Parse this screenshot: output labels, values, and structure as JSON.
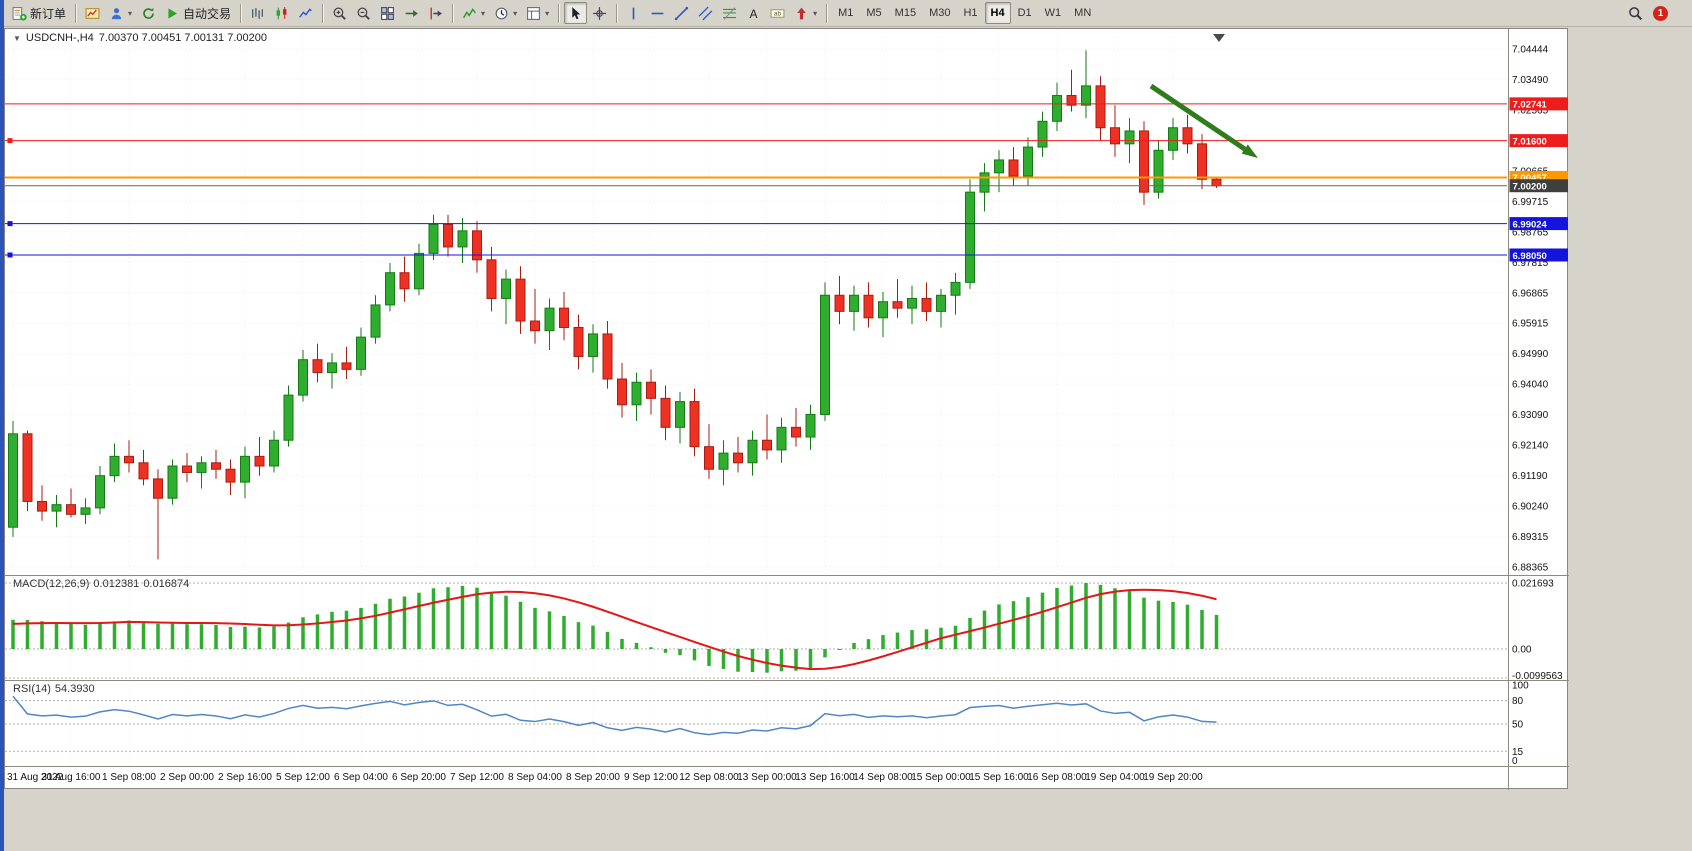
{
  "toolbar": {
    "buttons": [
      {
        "name": "new-order",
        "label": "新订单"
      },
      {
        "sep": true
      },
      {
        "name": "new-chart"
      },
      {
        "name": "profiles",
        "dropdown": true
      },
      {
        "name": "refresh"
      },
      {
        "name": "auto-trading",
        "label": "自动交易"
      },
      {
        "sep": true
      },
      {
        "name": "chart-bars"
      },
      {
        "name": "chart-candles"
      },
      {
        "name": "chart-line"
      },
      {
        "sep": true
      },
      {
        "name": "zoom-in"
      },
      {
        "name": "zoom-out"
      },
      {
        "name": "tile-windows"
      },
      {
        "name": "auto-scroll"
      },
      {
        "name": "chart-shift"
      },
      {
        "sep": true
      },
      {
        "name": "indicators",
        "dropdown": true
      },
      {
        "name": "periods",
        "dropdown": true
      },
      {
        "name": "templates",
        "dropdown": true
      },
      {
        "sep": true
      },
      {
        "name": "cursor",
        "active": true
      },
      {
        "name": "crosshair"
      },
      {
        "sep": true
      },
      {
        "name": "vertical-line"
      },
      {
        "name": "horizontal-line"
      },
      {
        "name": "trendline"
      },
      {
        "name": "channel"
      },
      {
        "name": "fibonacci"
      },
      {
        "name": "text"
      },
      {
        "name": "text-label"
      },
      {
        "name": "arrows-tool",
        "dropdown": true
      },
      {
        "sep": true
      }
    ],
    "timeframes": [
      "M1",
      "M5",
      "M15",
      "M30",
      "H1",
      "H4",
      "D1",
      "W1",
      "MN"
    ],
    "active_timeframe": "H4",
    "notification_count": "1"
  },
  "chart": {
    "title_symbol": "USDCNH-,H4",
    "title_ohlc": "7.00370 7.00451 7.00131 7.00200",
    "price_axis": [
      "7.04444",
      "7.03490",
      "7.02565",
      "7.01615",
      "7.00665",
      "6.99715",
      "6.98765",
      "6.97815",
      "6.96865",
      "6.95915",
      "6.94990",
      "6.94040",
      "6.93090",
      "6.92140",
      "6.91190",
      "6.90240",
      "6.89315",
      "6.88365"
    ],
    "time_axis": [
      "31 Aug 2022",
      "31 Aug 16:00",
      "1 Sep 08:00",
      "2 Sep 00:00",
      "2 Sep 16:00",
      "5 Sep 12:00",
      "6 Sep 04:00",
      "6 Sep 20:00",
      "7 Sep 12:00",
      "8 Sep 04:00",
      "8 Sep 20:00",
      "9 Sep 12:00",
      "12 Sep 08:00",
      "13 Sep 00:00",
      "13 Sep 16:00",
      "14 Sep 08:00",
      "15 Sep 00:00",
      "15 Sep 16:00",
      "16 Sep 08:00",
      "19 Sep 04:00",
      "19 Sep 20:00"
    ],
    "hlines": [
      {
        "label": "7.02741",
        "price": 7.02741,
        "color": "#ee1c1c",
        "width": 1,
        "marker": false
      },
      {
        "label": "7.01600",
        "price": 7.016,
        "color": "#ee1c1c",
        "width": 1,
        "marker": true
      },
      {
        "label": "7.00457",
        "price": 7.00457,
        "color": "#ff9800",
        "width": 2,
        "marker": false
      },
      {
        "label": "7.00200",
        "price": 7.002,
        "color": "#666666",
        "width": 1,
        "marker": false,
        "box": "#3f3f3f"
      },
      {
        "label": "6.99024",
        "price": 6.99024,
        "color": "#1414dc",
        "width": 1,
        "marker": true
      },
      {
        "label": "6.98050",
        "price": 6.9805,
        "color": "#1414dc",
        "width": 1,
        "marker": true
      }
    ],
    "arrow": {
      "from": [
        1146,
        57
      ],
      "to": [
        1253,
        129
      ],
      "color": "#2e7d1a"
    },
    "colors": {
      "bull": "#2fad2f",
      "bull_border": "#157a15",
      "bear": "#ef3124",
      "bear_border": "#a81d12",
      "grid": "#ececec",
      "axis_text": "#111111",
      "level_dash": "#b0b0b0"
    }
  },
  "chart_data": {
    "type": "candlestick",
    "symbol": "USDCNH",
    "timeframe": "H4",
    "ohlc_last": {
      "open": 7.0037,
      "high": 7.00451,
      "low": 7.00131,
      "close": 7.002
    },
    "ylim": [
      6.88365,
      7.04444
    ],
    "candles": [
      [
        6.896,
        6.929,
        6.893,
        6.925
      ],
      [
        6.925,
        6.926,
        6.901,
        6.904
      ],
      [
        6.904,
        6.909,
        6.898,
        6.901
      ],
      [
        6.901,
        6.906,
        6.896,
        6.903
      ],
      [
        6.903,
        6.908,
        6.899,
        6.9
      ],
      [
        6.9,
        6.905,
        6.897,
        6.902
      ],
      [
        6.902,
        6.915,
        6.9,
        6.912
      ],
      [
        6.912,
        6.922,
        6.91,
        6.918
      ],
      [
        6.918,
        6.923,
        6.913,
        6.916
      ],
      [
        6.916,
        6.92,
        6.909,
        6.911
      ],
      [
        6.911,
        6.914,
        6.886,
        6.905
      ],
      [
        6.905,
        6.917,
        6.903,
        6.915
      ],
      [
        6.915,
        6.919,
        6.91,
        6.913
      ],
      [
        6.913,
        6.918,
        6.908,
        6.916
      ],
      [
        6.916,
        6.92,
        6.911,
        6.914
      ],
      [
        6.914,
        6.917,
        6.906,
        6.91
      ],
      [
        6.91,
        6.921,
        6.905,
        6.918
      ],
      [
        6.918,
        6.924,
        6.912,
        6.915
      ],
      [
        6.915,
        6.926,
        6.913,
        6.923
      ],
      [
        6.923,
        6.94,
        6.921,
        6.937
      ],
      [
        6.937,
        6.951,
        6.935,
        6.948
      ],
      [
        6.948,
        6.953,
        6.941,
        6.944
      ],
      [
        6.944,
        6.95,
        6.939,
        6.947
      ],
      [
        6.947,
        6.952,
        6.942,
        6.945
      ],
      [
        6.945,
        6.958,
        6.943,
        6.955
      ],
      [
        6.955,
        6.968,
        6.953,
        6.965
      ],
      [
        6.965,
        6.978,
        6.963,
        6.975
      ],
      [
        6.975,
        6.98,
        6.966,
        6.97
      ],
      [
        6.97,
        6.984,
        6.968,
        6.981
      ],
      [
        6.981,
        6.993,
        6.979,
        6.99
      ],
      [
        6.99,
        6.993,
        6.98,
        6.983
      ],
      [
        6.983,
        6.992,
        6.978,
        6.988
      ],
      [
        6.988,
        6.991,
        6.975,
        6.979
      ],
      [
        6.979,
        6.983,
        6.963,
        6.967
      ],
      [
        6.967,
        6.976,
        6.959,
        6.973
      ],
      [
        6.973,
        6.977,
        6.956,
        6.96
      ],
      [
        6.96,
        6.97,
        6.953,
        6.957
      ],
      [
        6.957,
        6.967,
        6.951,
        6.964
      ],
      [
        6.964,
        6.969,
        6.954,
        6.958
      ],
      [
        6.958,
        6.962,
        6.945,
        6.949
      ],
      [
        6.949,
        6.959,
        6.944,
        6.956
      ],
      [
        6.956,
        6.96,
        6.939,
        6.942
      ],
      [
        6.942,
        6.947,
        6.93,
        6.934
      ],
      [
        6.934,
        6.944,
        6.929,
        6.941
      ],
      [
        6.941,
        6.945,
        6.931,
        6.936
      ],
      [
        6.936,
        6.94,
        6.923,
        6.927
      ],
      [
        6.927,
        6.938,
        6.922,
        6.935
      ],
      [
        6.935,
        6.939,
        6.918,
        6.921
      ],
      [
        6.921,
        6.928,
        6.911,
        6.914
      ],
      [
        6.914,
        6.923,
        6.909,
        6.919
      ],
      [
        6.919,
        6.924,
        6.913,
        6.916
      ],
      [
        6.916,
        6.926,
        6.912,
        6.923
      ],
      [
        6.923,
        6.931,
        6.917,
        6.92
      ],
      [
        6.92,
        6.93,
        6.916,
        6.927
      ],
      [
        6.927,
        6.933,
        6.921,
        6.924
      ],
      [
        6.924,
        6.934,
        6.92,
        6.931
      ],
      [
        6.931,
        6.972,
        6.929,
        6.968
      ],
      [
        6.968,
        6.974,
        6.959,
        6.963
      ],
      [
        6.963,
        6.971,
        6.957,
        6.968
      ],
      [
        6.968,
        6.972,
        6.958,
        6.961
      ],
      [
        6.961,
        6.969,
        6.955,
        6.966
      ],
      [
        6.966,
        6.973,
        6.961,
        6.964
      ],
      [
        6.964,
        6.971,
        6.959,
        6.967
      ],
      [
        6.967,
        6.972,
        6.96,
        6.963
      ],
      [
        6.963,
        6.97,
        6.958,
        6.968
      ],
      [
        6.968,
        6.975,
        6.962,
        6.972
      ],
      [
        6.972,
        7.004,
        6.97,
        7.0
      ],
      [
        7.0,
        7.009,
        6.994,
        7.006
      ],
      [
        7.006,
        7.013,
        7.0,
        7.01
      ],
      [
        7.01,
        7.014,
        7.002,
        7.005
      ],
      [
        7.005,
        7.017,
        7.002,
        7.014
      ],
      [
        7.014,
        7.025,
        7.011,
        7.022
      ],
      [
        7.022,
        7.034,
        7.019,
        7.03
      ],
      [
        7.03,
        7.038,
        7.025,
        7.027
      ],
      [
        7.027,
        7.044,
        7.023,
        7.033
      ],
      [
        7.033,
        7.036,
        7.016,
        7.02
      ],
      [
        7.02,
        7.027,
        7.011,
        7.015
      ],
      [
        7.015,
        7.023,
        7.009,
        7.019
      ],
      [
        7.019,
        7.022,
        6.996,
        7.0
      ],
      [
        7.0,
        7.016,
        6.998,
        7.013
      ],
      [
        7.013,
        7.023,
        7.01,
        7.02
      ],
      [
        7.02,
        7.024,
        7.012,
        7.015
      ],
      [
        7.015,
        7.018,
        7.001,
        7.004
      ],
      [
        7.004,
        7.0045,
        7.0013,
        7.002
      ]
    ],
    "pre_window_closes": [
      6.85,
      6.854,
      6.853,
      6.857,
      6.856,
      6.86,
      6.859,
      6.863,
      6.862,
      6.866,
      6.865,
      6.869,
      6.868,
      6.872,
      6.871,
      6.875,
      6.874,
      6.878,
      6.877,
      6.881,
      6.88,
      6.884,
      6.883,
      6.887,
      6.886,
      6.89,
      6.889,
      6.893,
      6.892,
      6.896,
      6.895,
      6.892,
      6.893,
      6.891,
      6.896
    ]
  },
  "macd": {
    "name": "MACD(12,26,9)",
    "value_main": "0.012381",
    "value_signal": "0.016874",
    "axis": [
      "0.021693",
      "0.00",
      "-0.0099563"
    ],
    "params": {
      "fast": 12,
      "slow": 26,
      "signal": 9
    },
    "colors": {
      "histogram": "#2fad2f",
      "signal": "#e41616"
    }
  },
  "rsi": {
    "name": "RSI(14)",
    "value": "54.3930",
    "period": 14,
    "levels": [
      80,
      50,
      15
    ],
    "axis": [
      "100",
      "80",
      "50",
      "15",
      "0"
    ],
    "color": "#4f86c8"
  }
}
